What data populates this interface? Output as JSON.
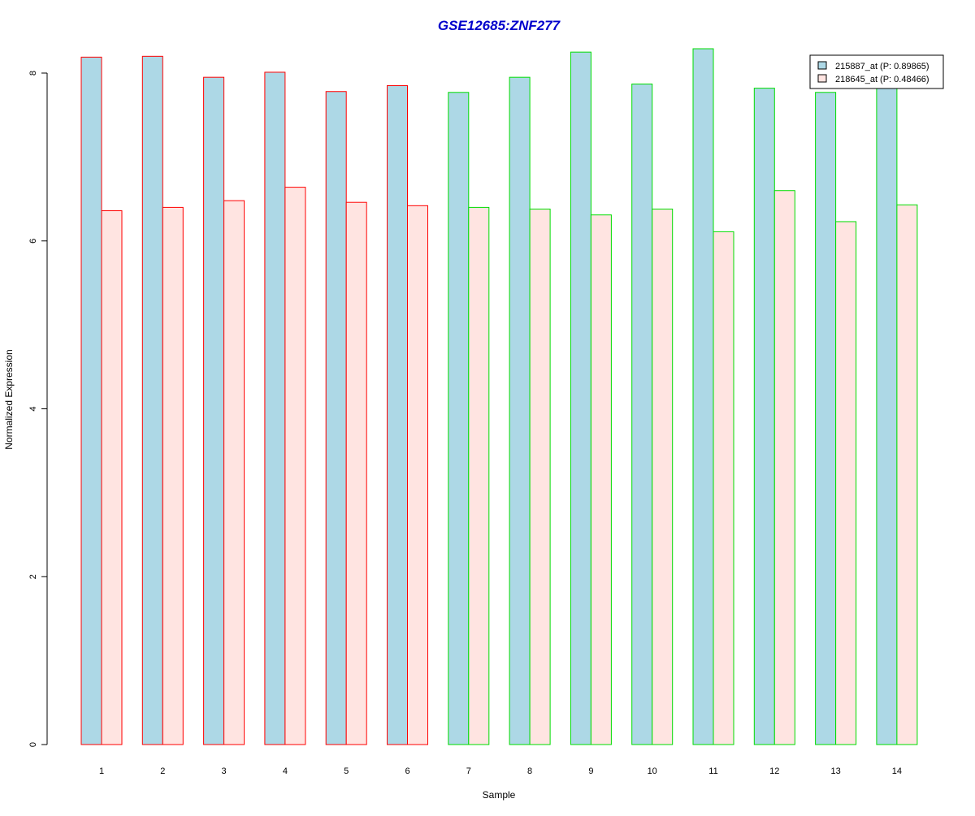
{
  "chart_data": {
    "type": "bar",
    "title": "GSE12685:ZNF277",
    "title_color": "#0000CC",
    "xlabel": "Sample",
    "ylabel": "Normalized Expression",
    "ylim": [
      0,
      8.35
    ],
    "yticks": [
      0,
      2,
      4,
      6,
      8
    ],
    "grid": false,
    "legend_position": "top-right",
    "categories": [
      "1",
      "2",
      "3",
      "4",
      "5",
      "6",
      "7",
      "8",
      "9",
      "10",
      "11",
      "12",
      "13",
      "14"
    ],
    "group_border_colors": [
      "#FF0000",
      "#FF0000",
      "#FF0000",
      "#FF0000",
      "#FF0000",
      "#FF0000",
      "#00DD00",
      "#00DD00",
      "#00DD00",
      "#00DD00",
      "#00DD00",
      "#00DD00",
      "#00DD00",
      "#00DD00"
    ],
    "series": [
      {
        "name": "215887_at (P: 0.89865)",
        "fill": "#ADD8E6",
        "values": [
          8.19,
          8.2,
          7.95,
          8.01,
          7.78,
          7.85,
          7.77,
          7.95,
          8.25,
          7.87,
          8.29,
          7.82,
          7.77,
          7.83
        ]
      },
      {
        "name": "218645_at (P: 0.48466)",
        "fill": "#FFE4E1",
        "values": [
          6.36,
          6.4,
          6.48,
          6.64,
          6.46,
          6.42,
          6.4,
          6.38,
          6.31,
          6.38,
          6.11,
          6.6,
          6.23,
          6.43
        ]
      }
    ]
  }
}
